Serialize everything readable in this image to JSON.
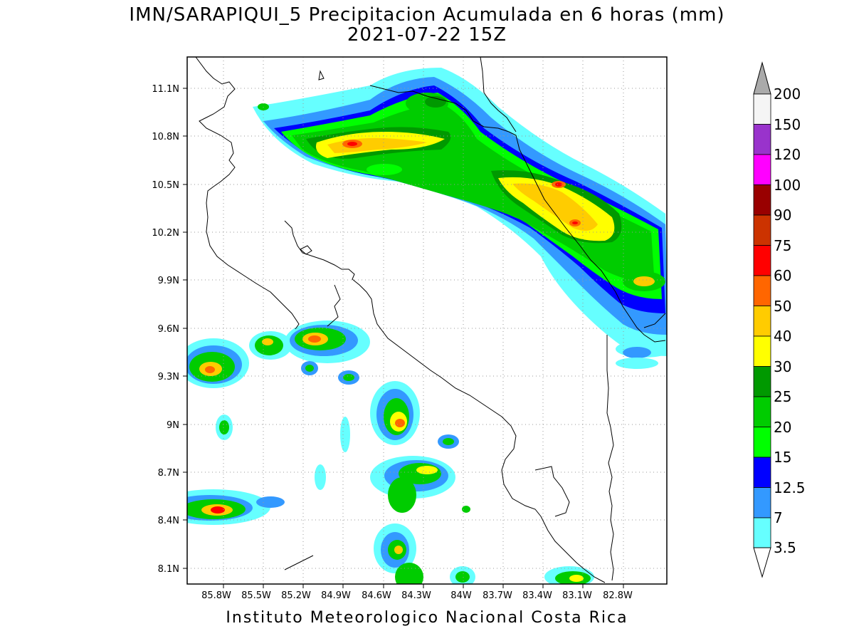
{
  "map": {
    "title_line1": "IMN/SARAPIQUI_5 Precipitacion Acumulada en 6 horas (mm)",
    "title_line2": "2021-07-22 15Z",
    "footer": "Instituto Meteorologico Nacional Costa Rica",
    "lat_ticks": [
      "11.1N",
      "10.8N",
      "10.5N",
      "10.2N",
      "9.9N",
      "9.6N",
      "9.3N",
      "9N",
      "8.7N",
      "8.4N",
      "8.1N"
    ],
    "lon_ticks": [
      "85.8W",
      "85.5W",
      "85.2W",
      "84.9W",
      "84.6W",
      "84.3W",
      "84W",
      "83.7W",
      "83.4W",
      "83.1W",
      "82.8W"
    ],
    "colors": {
      "c3_5": "#66ffff",
      "c7": "#3399ff",
      "c12_5": "#0000ff",
      "c15": "#00ff00",
      "c20": "#00cc00",
      "c25": "#009900",
      "c30": "#ffff00",
      "c40": "#ffcc00",
      "c50": "#ff6600",
      "c60": "#ff0000",
      "c75": "#cc3300",
      "c90": "#990000",
      "c100": "#ff00ff",
      "c120": "#9933cc",
      "c150": "#f5f5f5",
      "c200": "#aaaaaa"
    }
  },
  "legend": {
    "labels": [
      "200",
      "150",
      "120",
      "100",
      "90",
      "75",
      "60",
      "50",
      "40",
      "30",
      "25",
      "20",
      "15",
      "12.5",
      "7",
      "3.5"
    ]
  }
}
